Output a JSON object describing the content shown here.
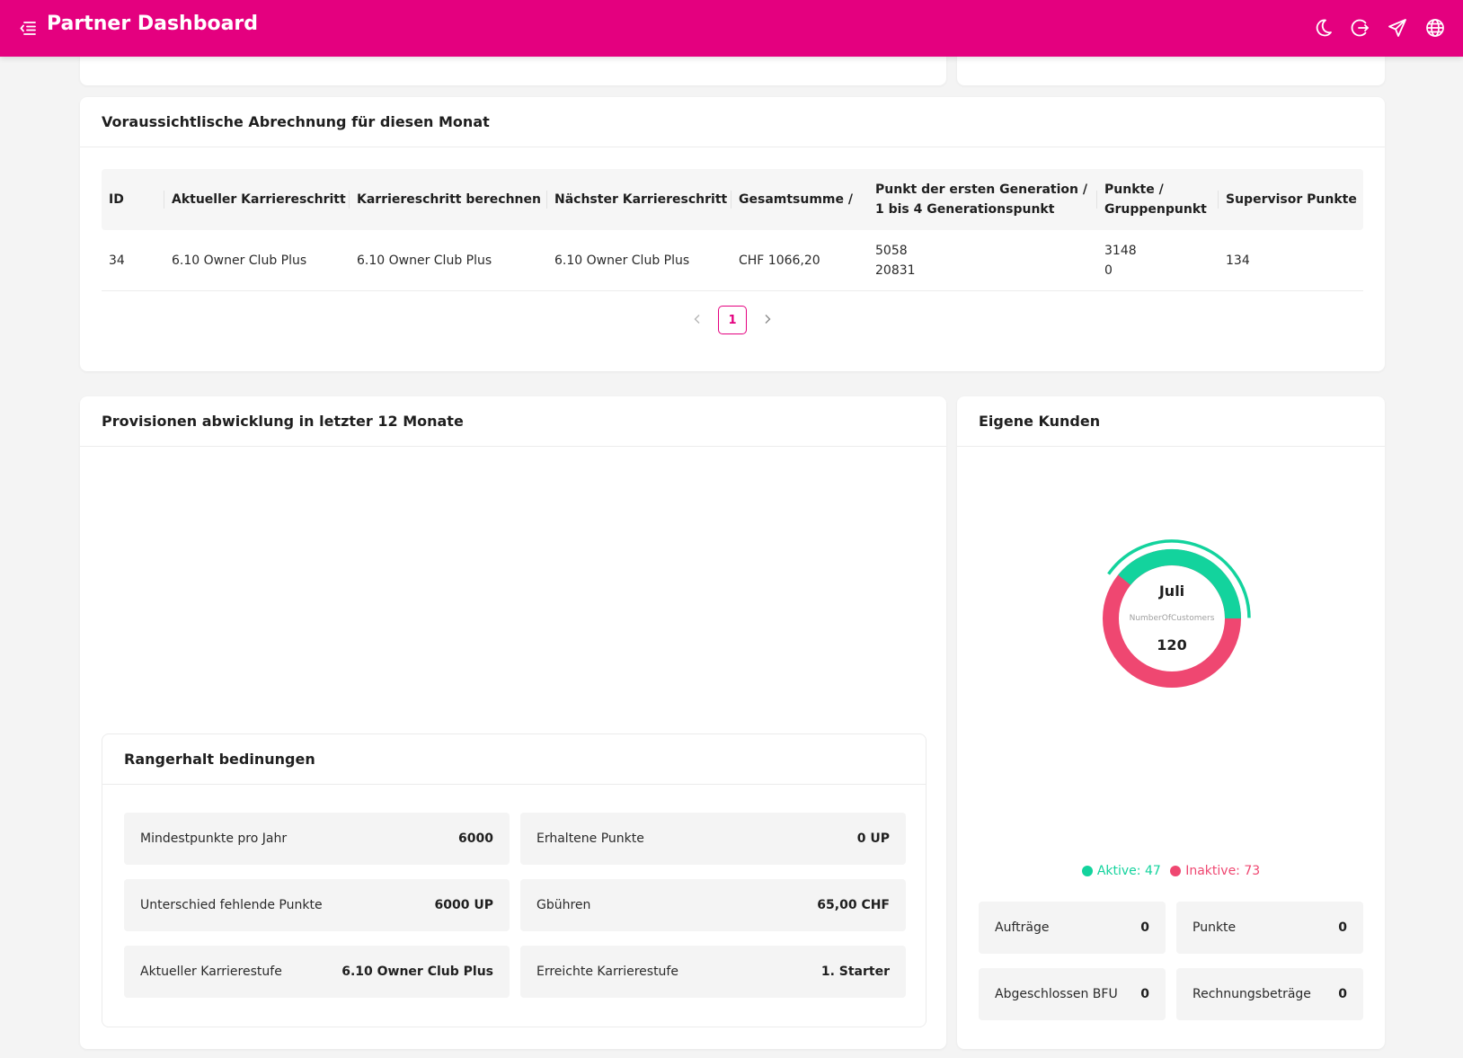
{
  "header": {
    "title": "Partner Dashboard"
  },
  "colors": {
    "brand": "#e4007f",
    "active": "#13d39d",
    "inactive": "#ef4771"
  },
  "icons": {
    "menu": "menu-fold-icon",
    "theme": "moon-icon",
    "logout": "logout-icon",
    "send": "send-icon",
    "language": "globe-icon"
  },
  "billing": {
    "title": "Voraussichtlische Abrechnung für diesen Monat",
    "columns": [
      [
        "ID"
      ],
      [
        "Aktueller Karriereschritt"
      ],
      [
        "Karriereschritt berechnen"
      ],
      [
        "Nächster Karriereschritt"
      ],
      [
        "Gesamtsumme /"
      ],
      [
        "Punkt der ersten Generation /",
        "1 bis 4 Generationspunkt"
      ],
      [
        "Punkte /",
        "Gruppenpunkt"
      ],
      [
        "Supervisor Punkte"
      ]
    ],
    "rows": [
      [
        [
          "34"
        ],
        [
          "6.10 Owner Club Plus"
        ],
        [
          "6.10 Owner Club Plus"
        ],
        [
          "6.10 Owner Club Plus"
        ],
        [
          "CHF 1066,20"
        ],
        [
          "5058",
          "20831"
        ],
        [
          "3148",
          "0"
        ],
        [
          "134"
        ]
      ]
    ],
    "pagination": {
      "current": "1"
    }
  },
  "commissions": {
    "title": "Provisionen abwicklung in letzter 12 Monate"
  },
  "rank": {
    "title": "Rangerhalt bedinungen",
    "stats": [
      {
        "label": "Mindestpunkte pro Jahr",
        "value": "6000"
      },
      {
        "label": "Erhaltene Punkte",
        "value": "0 UP"
      },
      {
        "label": "Unterschied fehlende Punkte",
        "value": "6000 UP"
      },
      {
        "label": "Gbühren",
        "value": "65,00 CHF"
      },
      {
        "label": "Aktueller Karrierestufe",
        "value": "6.10 Owner Club Plus"
      },
      {
        "label": "Erreichte Karrierestufe",
        "value": "1. Starter"
      }
    ]
  },
  "customers": {
    "title": "Eigene Kunden",
    "donut": {
      "month": "Juli",
      "metric": "NumberOfCustomers",
      "total": "120",
      "active": 47,
      "inactive": 73
    },
    "legend": {
      "active": "Aktive: 47",
      "inactive": "Inaktive: 73"
    },
    "stats": [
      {
        "label": "Aufträge",
        "value": "0"
      },
      {
        "label": "Punkte",
        "value": "0"
      },
      {
        "label": "Abgeschlossen BFU",
        "value": "0"
      },
      {
        "label": "Rechnungsbeträge",
        "value": "0"
      }
    ]
  }
}
